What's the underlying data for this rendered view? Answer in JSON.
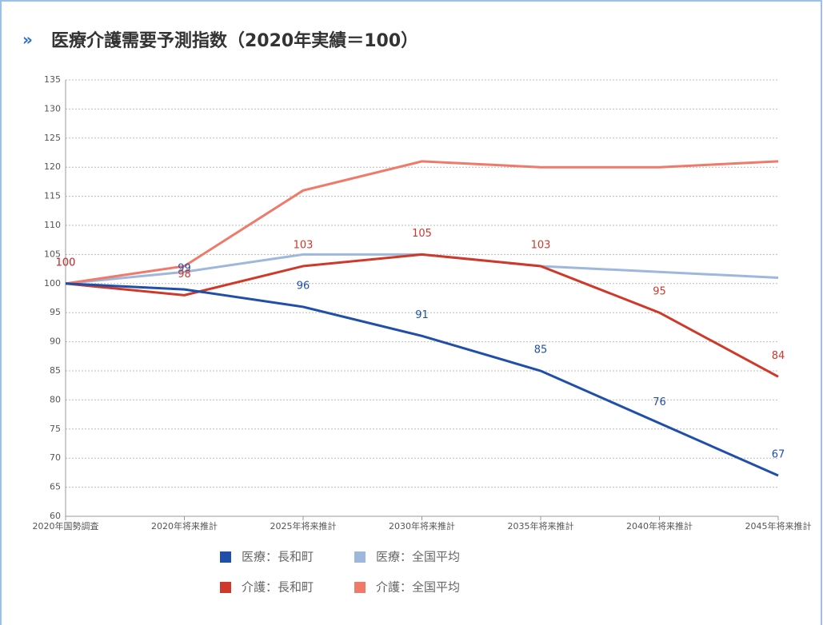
{
  "chart_data": {
    "type": "line",
    "title": "医療介護需要予測指数（2020年実績＝100）",
    "categories": [
      "2020年国勢調査",
      "2020年将来推計",
      "2025年将来推計",
      "2030年将来推計",
      "2035年将来推計",
      "2040年将来推計",
      "2045年将来推計"
    ],
    "series": [
      {
        "name": "医療：長和町",
        "color": "#1f4fa8",
        "values": [
          100,
          99,
          96,
          91,
          85,
          76,
          67
        ],
        "data_labels": true
      },
      {
        "name": "医療：全国平均",
        "color": "#9db8dc",
        "values": [
          100,
          102,
          105,
          105,
          103,
          102,
          101
        ],
        "data_labels": false
      },
      {
        "name": "介護：長和町",
        "color": "#d0382a",
        "values": [
          100,
          98,
          103,
          105,
          103,
          95,
          84
        ],
        "data_labels": true
      },
      {
        "name": "介護：全国平均",
        "color": "#ef7a6a",
        "values": [
          100,
          103,
          116,
          121,
          120,
          120,
          121
        ],
        "data_labels": false
      }
    ],
    "ylim": [
      60,
      135
    ],
    "yticks": [
      60,
      65,
      70,
      75,
      80,
      85,
      90,
      95,
      100,
      105,
      110,
      115,
      120,
      125,
      130,
      135
    ],
    "grid": true
  }
}
